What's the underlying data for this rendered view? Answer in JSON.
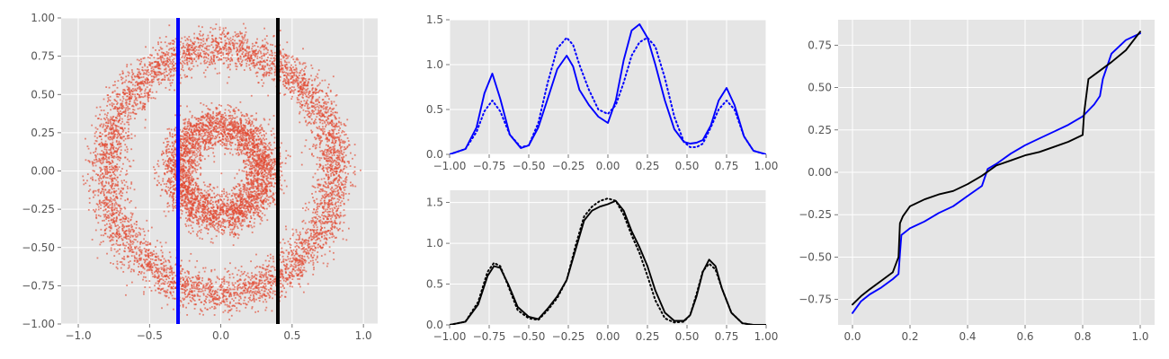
{
  "style": {
    "panel_bg": "#e5e5e5",
    "grid": "#ffffff",
    "tick_text": "#555555",
    "scatter": "#e24a33",
    "blue": "#0000ff",
    "black": "#000000"
  },
  "chart_data": [
    {
      "id": "scatter",
      "type": "scatter",
      "title": "",
      "xlabel": "",
      "ylabel": "",
      "xlim": [
        -1.12,
        1.1
      ],
      "ylim": [
        -1.0,
        1.0
      ],
      "xticks": [
        -1.0,
        -0.5,
        0.0,
        0.5,
        1.0
      ],
      "xtick_labels": [
        "−1.0",
        "−0.5",
        "0.0",
        "0.5",
        "1.0"
      ],
      "yticks": [
        -1.0,
        -0.75,
        -0.5,
        -0.25,
        0.0,
        0.25,
        0.5,
        0.75,
        1.0
      ],
      "ytick_labels": [
        "−1.00",
        "−0.75",
        "−0.50",
        "−0.25",
        "0.00",
        "0.25",
        "0.50",
        "0.75",
        "1.00"
      ],
      "grid": true,
      "rings": [
        {
          "radius": 0.8,
          "width": 0.12
        },
        {
          "radius": 0.3,
          "width": 0.12
        }
      ],
      "vlines": [
        {
          "x": -0.3,
          "color": "#0000ff"
        },
        {
          "x": 0.4,
          "color": "#000000"
        }
      ]
    },
    {
      "id": "density-top",
      "type": "line",
      "title": "",
      "xlabel": "",
      "ylabel": "",
      "xlim": [
        -1.0,
        1.0
      ],
      "ylim": [
        0.0,
        1.5
      ],
      "xticks": [
        -1.0,
        -0.75,
        -0.5,
        -0.25,
        0.0,
        0.25,
        0.5,
        0.75,
        1.0
      ],
      "xtick_labels": [
        "−1.00",
        "−0.75",
        "−0.50",
        "−0.25",
        "0.00",
        "0.25",
        "0.50",
        "0.75",
        "1.00"
      ],
      "yticks": [
        0.0,
        0.5,
        1.0,
        1.5
      ],
      "ytick_labels": [
        "0.0",
        "0.5",
        "1.0",
        "1.5"
      ],
      "grid": true,
      "series": [
        {
          "style": "solid",
          "color": "#0000ff",
          "x": [
            -1.0,
            -0.9,
            -0.83,
            -0.78,
            -0.73,
            -0.68,
            -0.62,
            -0.55,
            -0.5,
            -0.44,
            -0.38,
            -0.32,
            -0.26,
            -0.22,
            -0.18,
            -0.12,
            -0.06,
            0.0,
            0.05,
            0.1,
            0.15,
            0.2,
            0.25,
            0.3,
            0.36,
            0.42,
            0.48,
            0.52,
            0.56,
            0.6,
            0.65,
            0.7,
            0.75,
            0.8,
            0.86,
            0.92,
            1.0
          ],
          "y": [
            0.0,
            0.06,
            0.3,
            0.68,
            0.9,
            0.62,
            0.22,
            0.07,
            0.1,
            0.3,
            0.62,
            0.95,
            1.1,
            0.98,
            0.72,
            0.55,
            0.42,
            0.35,
            0.6,
            1.05,
            1.38,
            1.45,
            1.3,
            1.0,
            0.6,
            0.28,
            0.14,
            0.12,
            0.13,
            0.16,
            0.32,
            0.6,
            0.74,
            0.55,
            0.2,
            0.04,
            0.0
          ]
        },
        {
          "style": "dotted",
          "color": "#0000ff",
          "x": [
            -1.0,
            -0.9,
            -0.83,
            -0.78,
            -0.73,
            -0.68,
            -0.62,
            -0.55,
            -0.5,
            -0.44,
            -0.38,
            -0.32,
            -0.26,
            -0.22,
            -0.18,
            -0.12,
            -0.06,
            0.0,
            0.05,
            0.1,
            0.15,
            0.2,
            0.25,
            0.3,
            0.36,
            0.42,
            0.48,
            0.52,
            0.56,
            0.6,
            0.65,
            0.7,
            0.75,
            0.8,
            0.86,
            0.92,
            1.0
          ],
          "y": [
            0.0,
            0.06,
            0.25,
            0.48,
            0.6,
            0.48,
            0.22,
            0.08,
            0.1,
            0.35,
            0.8,
            1.18,
            1.3,
            1.22,
            1.0,
            0.72,
            0.5,
            0.45,
            0.55,
            0.8,
            1.1,
            1.25,
            1.3,
            1.2,
            0.85,
            0.42,
            0.14,
            0.08,
            0.08,
            0.12,
            0.3,
            0.5,
            0.6,
            0.5,
            0.2,
            0.04,
            0.0
          ]
        }
      ]
    },
    {
      "id": "density-bottom",
      "type": "line",
      "title": "",
      "xlabel": "",
      "ylabel": "",
      "xlim": [
        -1.0,
        1.0
      ],
      "ylim": [
        0.0,
        1.65
      ],
      "xticks": [
        -1.0,
        -0.75,
        -0.5,
        -0.25,
        0.0,
        0.25,
        0.5,
        0.75,
        1.0
      ],
      "xtick_labels": [
        "−1.00",
        "−0.75",
        "−0.50",
        "−0.25",
        "0.00",
        "0.25",
        "0.50",
        "0.75",
        "1.00"
      ],
      "yticks": [
        0.0,
        0.5,
        1.0,
        1.5
      ],
      "ytick_labels": [
        "0.0",
        "0.5",
        "1.0",
        "1.5"
      ],
      "grid": true,
      "series": [
        {
          "style": "solid",
          "color": "#000000",
          "x": [
            -1.0,
            -0.9,
            -0.82,
            -0.76,
            -0.72,
            -0.68,
            -0.63,
            -0.57,
            -0.5,
            -0.44,
            -0.38,
            -0.32,
            -0.26,
            -0.2,
            -0.15,
            -0.1,
            -0.05,
            0.0,
            0.05,
            0.1,
            0.15,
            0.2,
            0.25,
            0.3,
            0.36,
            0.42,
            0.48,
            0.52,
            0.56,
            0.6,
            0.64,
            0.68,
            0.72,
            0.78,
            0.85,
            0.92,
            1.0
          ],
          "y": [
            0.0,
            0.04,
            0.25,
            0.6,
            0.72,
            0.7,
            0.5,
            0.22,
            0.1,
            0.07,
            0.2,
            0.35,
            0.55,
            0.95,
            1.28,
            1.4,
            1.45,
            1.48,
            1.52,
            1.4,
            1.15,
            0.95,
            0.72,
            0.42,
            0.15,
            0.05,
            0.05,
            0.12,
            0.35,
            0.65,
            0.8,
            0.72,
            0.45,
            0.15,
            0.02,
            0.0,
            0.0
          ]
        },
        {
          "style": "dotted",
          "color": "#000000",
          "x": [
            -1.0,
            -0.9,
            -0.82,
            -0.76,
            -0.72,
            -0.68,
            -0.63,
            -0.57,
            -0.5,
            -0.44,
            -0.38,
            -0.32,
            -0.26,
            -0.2,
            -0.15,
            -0.1,
            -0.05,
            0.0,
            0.05,
            0.1,
            0.15,
            0.2,
            0.25,
            0.3,
            0.36,
            0.42,
            0.48,
            0.52,
            0.56,
            0.6,
            0.64,
            0.68,
            0.72,
            0.78,
            0.85,
            0.92,
            1.0
          ],
          "y": [
            0.0,
            0.04,
            0.28,
            0.65,
            0.76,
            0.72,
            0.48,
            0.18,
            0.08,
            0.06,
            0.18,
            0.33,
            0.55,
            1.0,
            1.33,
            1.45,
            1.52,
            1.55,
            1.52,
            1.35,
            1.1,
            0.88,
            0.6,
            0.3,
            0.08,
            0.03,
            0.04,
            0.12,
            0.38,
            0.66,
            0.75,
            0.68,
            0.45,
            0.15,
            0.02,
            0.0,
            0.0
          ]
        }
      ]
    },
    {
      "id": "quantile",
      "type": "line",
      "title": "",
      "xlabel": "",
      "ylabel": "",
      "xlim": [
        -0.05,
        1.05
      ],
      "ylim": [
        -0.9,
        0.9
      ],
      "xticks": [
        0.0,
        0.2,
        0.4,
        0.6,
        0.8,
        1.0
      ],
      "xtick_labels": [
        "0.0",
        "0.2",
        "0.4",
        "0.6",
        "0.8",
        "1.0"
      ],
      "yticks": [
        -0.75,
        -0.5,
        -0.25,
        0.0,
        0.25,
        0.5,
        0.75
      ],
      "ytick_labels": [
        "−0.75",
        "−0.50",
        "−0.25",
        "0.00",
        "0.25",
        "0.50",
        "0.75"
      ],
      "grid": true,
      "series": [
        {
          "style": "solid",
          "color": "#0000ff",
          "x": [
            0.0,
            0.03,
            0.06,
            0.1,
            0.14,
            0.16,
            0.165,
            0.17,
            0.2,
            0.25,
            0.3,
            0.35,
            0.4,
            0.45,
            0.47,
            0.5,
            0.55,
            0.6,
            0.65,
            0.7,
            0.75,
            0.8,
            0.84,
            0.86,
            0.87,
            0.9,
            0.95,
            1.0
          ],
          "y": [
            -0.83,
            -0.76,
            -0.72,
            -0.68,
            -0.63,
            -0.6,
            -0.48,
            -0.37,
            -0.33,
            -0.29,
            -0.24,
            -0.2,
            -0.14,
            -0.08,
            0.02,
            0.05,
            0.11,
            0.16,
            0.2,
            0.24,
            0.28,
            0.33,
            0.4,
            0.45,
            0.55,
            0.7,
            0.78,
            0.82
          ]
        },
        {
          "style": "solid",
          "color": "#000000",
          "x": [
            0.0,
            0.03,
            0.06,
            0.1,
            0.14,
            0.16,
            0.165,
            0.175,
            0.2,
            0.25,
            0.3,
            0.35,
            0.4,
            0.45,
            0.5,
            0.55,
            0.6,
            0.65,
            0.7,
            0.75,
            0.8,
            0.805,
            0.82,
            0.86,
            0.9,
            0.95,
            1.0
          ],
          "y": [
            -0.78,
            -0.73,
            -0.69,
            -0.64,
            -0.59,
            -0.5,
            -0.3,
            -0.26,
            -0.2,
            -0.16,
            -0.13,
            -0.11,
            -0.07,
            -0.02,
            0.04,
            0.07,
            0.1,
            0.12,
            0.15,
            0.18,
            0.22,
            0.35,
            0.55,
            0.6,
            0.65,
            0.72,
            0.83
          ]
        }
      ]
    }
  ]
}
